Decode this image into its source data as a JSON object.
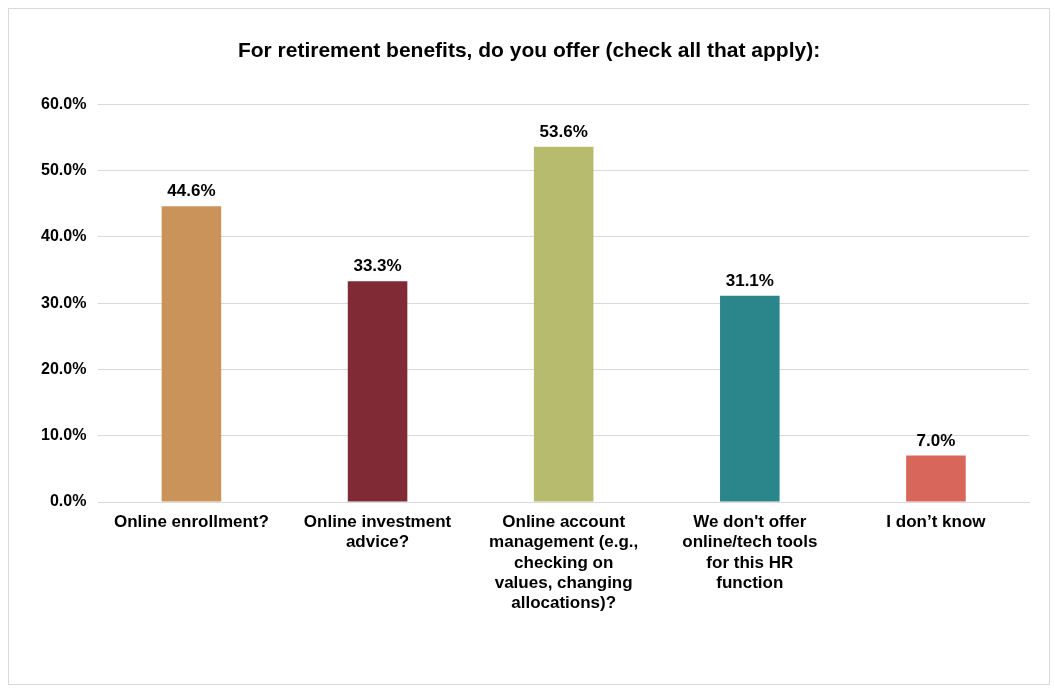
{
  "chart_data": {
    "type": "bar",
    "title": "For retirement benefits, do you offer (check all that apply):",
    "categories": [
      "Online enrollment?",
      "Online investment advice?",
      "Online account management (e.g., checking on values, changing allocations)?",
      "We don't offer online/tech tools for this HR function",
      "I don’t know"
    ],
    "values": [
      44.6,
      33.3,
      53.6,
      31.1,
      7.0
    ],
    "colors": [
      "#c9935a",
      "#7f2a35",
      "#b7bb6e",
      "#2b868c",
      "#d9665b"
    ],
    "value_labels": [
      "44.6%",
      "33.3%",
      "53.6%",
      "31.1%",
      "7.0%"
    ],
    "ylim": [
      0,
      60
    ],
    "yticks": [
      {
        "value": 0,
        "label": "0.0%"
      },
      {
        "value": 10,
        "label": "10.0%"
      },
      {
        "value": 20,
        "label": "20.0%"
      },
      {
        "value": 30,
        "label": "30.0%"
      },
      {
        "value": 40,
        "label": "40.0%"
      },
      {
        "value": 50,
        "label": "50.0%"
      },
      {
        "value": 60,
        "label": "60.0%"
      }
    ],
    "grid": "y",
    "legend": false
  }
}
